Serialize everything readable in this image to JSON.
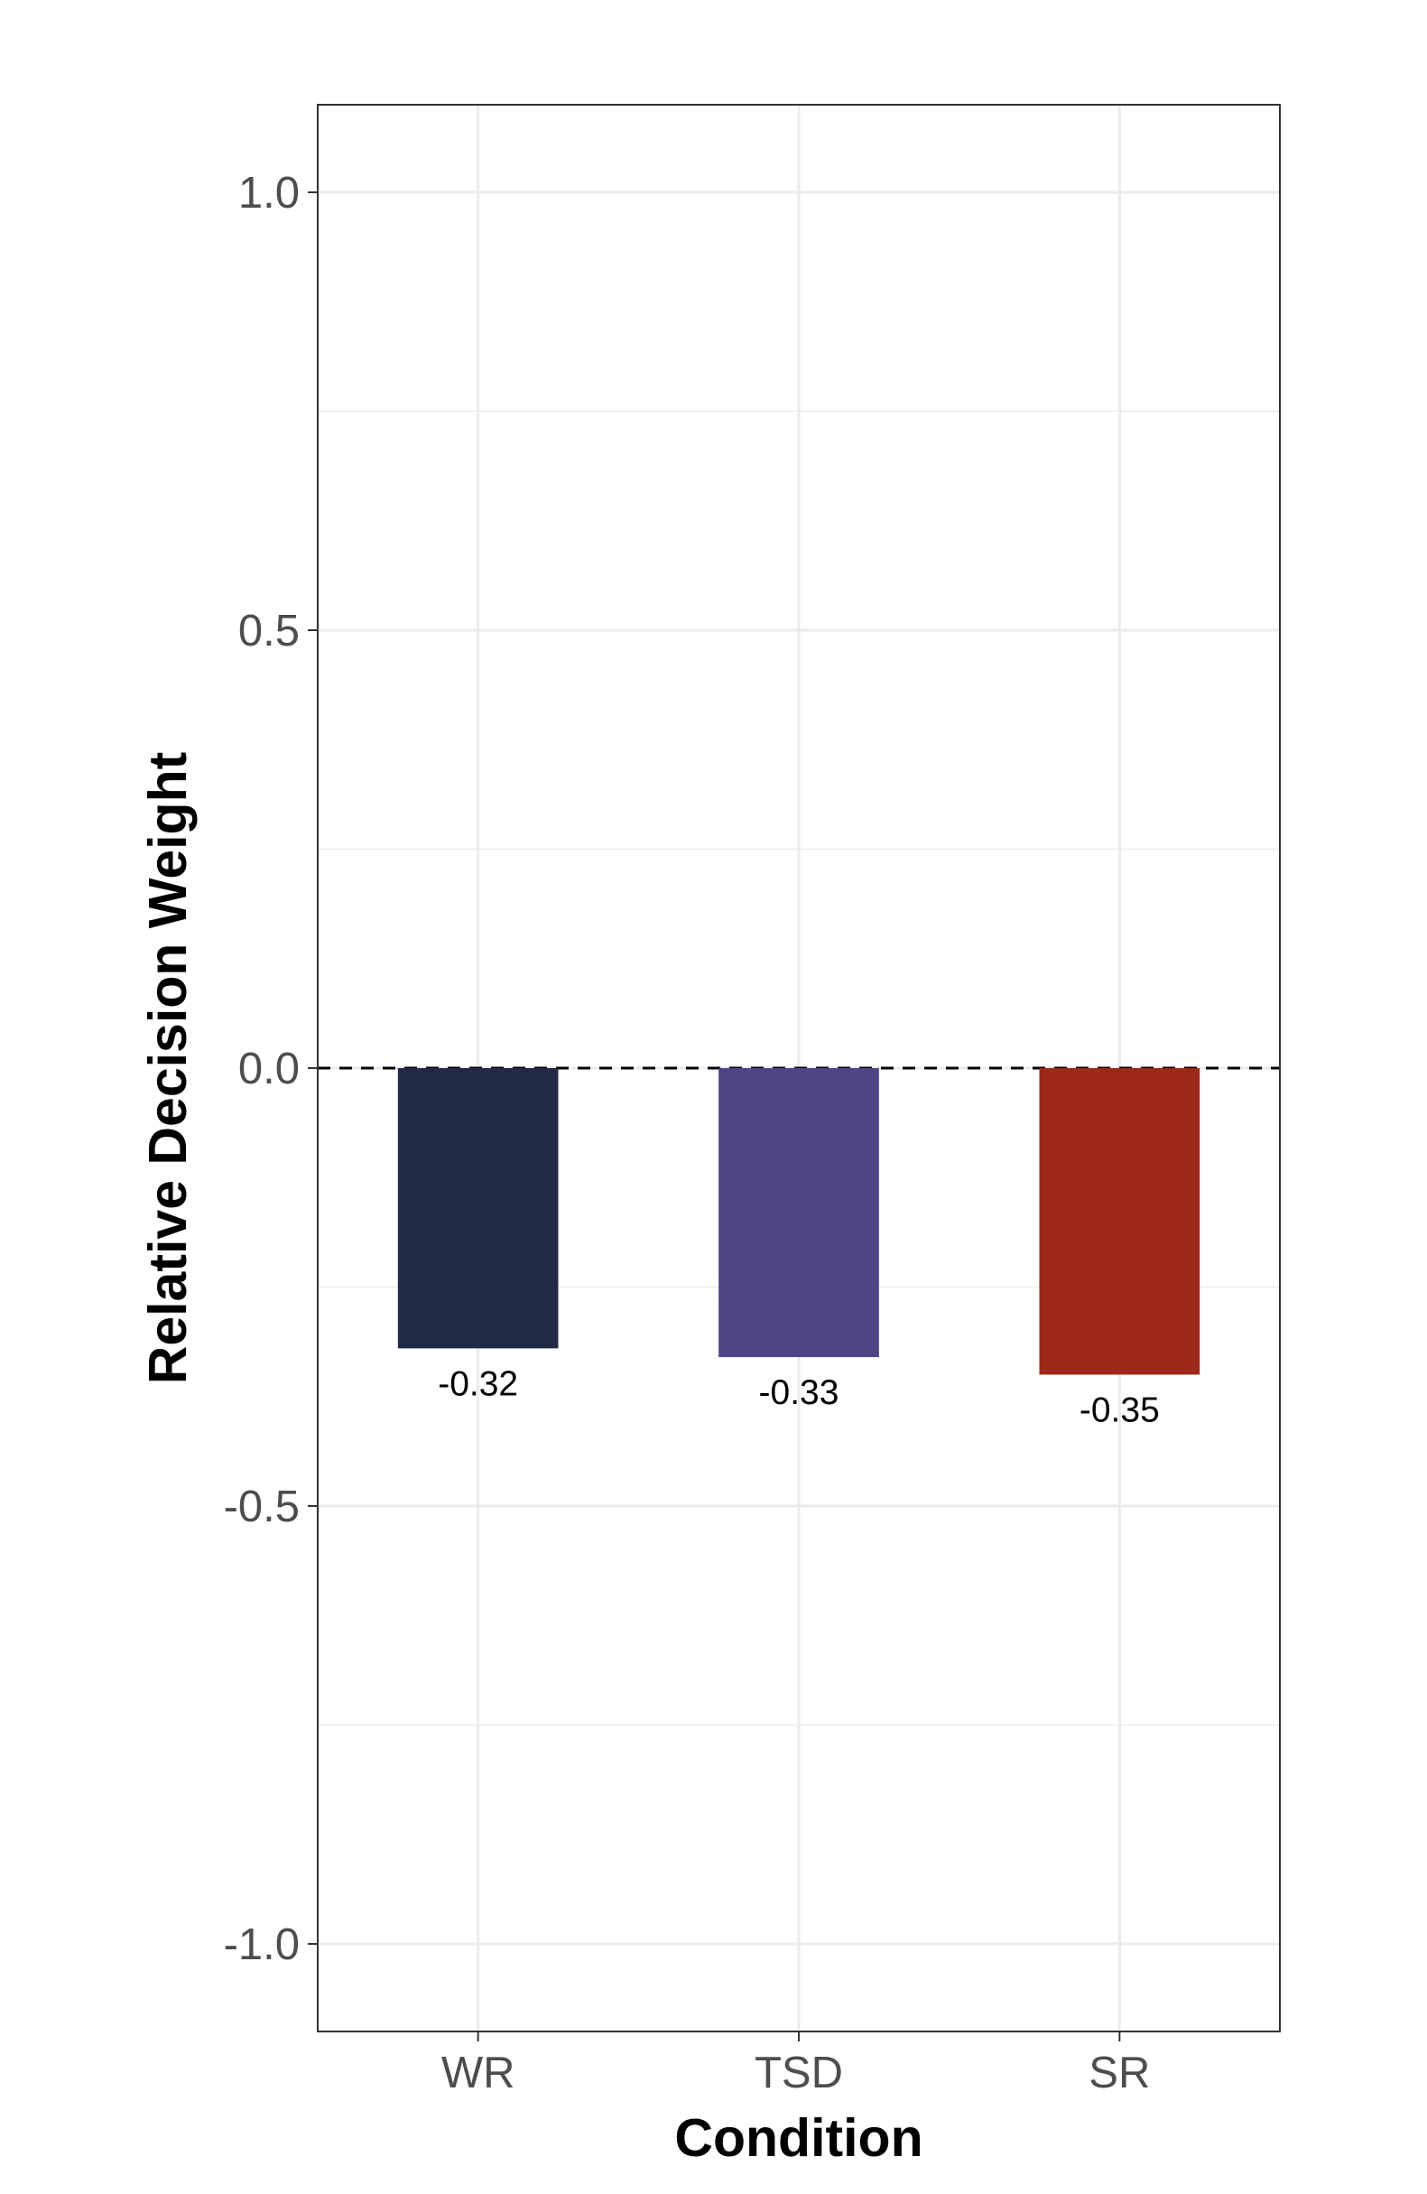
{
  "chart_data": {
    "type": "bar",
    "title": "",
    "xlabel": "Condition",
    "ylabel": "Relative Decision Weight",
    "categories": [
      "WR",
      "TSD",
      "SR"
    ],
    "values": [
      -0.32,
      -0.33,
      -0.35
    ],
    "value_labels": [
      "-0.32",
      "-0.33",
      "-0.35"
    ],
    "colors": [
      "#212A45",
      "#4E4486",
      "#9B2818"
    ],
    "ylim": [
      -1.1,
      1.1
    ],
    "yticks": [
      1.0,
      0.5,
      0.0,
      -0.5,
      -1.0
    ],
    "ytick_labels": [
      "1.0",
      "0.5",
      "0.0",
      "-0.5",
      "-1.0"
    ],
    "reference_line": {
      "y": 0,
      "style": "dashed",
      "color": "#000000"
    },
    "grid": true,
    "legend": "none"
  }
}
